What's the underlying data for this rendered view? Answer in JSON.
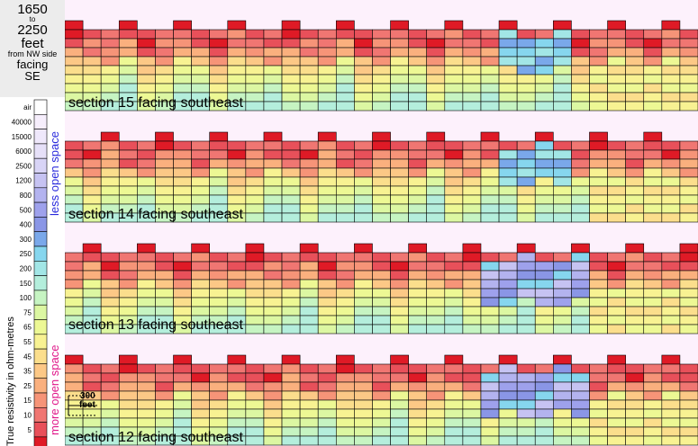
{
  "header": {
    "range_from": "1650",
    "range_to_word": "to",
    "range_to": "2250",
    "unit": "feet",
    "reference": "from NW side",
    "facing_word": "facing",
    "direction": "SE"
  },
  "legend": {
    "axis_title": "True resistivity in ohm-metres",
    "top_annotation": "less open space",
    "bottom_annotation": "more open space",
    "items": [
      {
        "label": "air",
        "color": "#ffffff"
      },
      {
        "label": "40000",
        "color": "#f6eefc"
      },
      {
        "label": "15000",
        "color": "#efe8fb"
      },
      {
        "label": "6000",
        "color": "#e6e0f8"
      },
      {
        "label": "2500",
        "color": "#d8d4f6"
      },
      {
        "label": "1200",
        "color": "#c6c3f2"
      },
      {
        "label": "800",
        "color": "#b3b3ef"
      },
      {
        "label": "500",
        "color": "#9ea1ec"
      },
      {
        "label": "400",
        "color": "#8a96e6"
      },
      {
        "label": "300",
        "color": "#7aa8ea"
      },
      {
        "label": "250",
        "color": "#86d6ee"
      },
      {
        "label": "200",
        "color": "#a2e6e6"
      },
      {
        "label": "150",
        "color": "#b4eedc"
      },
      {
        "label": "100",
        "color": "#c6f4c2"
      },
      {
        "label": "75",
        "color": "#dcf7a2"
      },
      {
        "label": "65",
        "color": "#edf894"
      },
      {
        "label": "55",
        "color": "#f8f292"
      },
      {
        "label": "45",
        "color": "#fbde8c"
      },
      {
        "label": "35",
        "color": "#fcc886"
      },
      {
        "label": "25",
        "color": "#fab07e"
      },
      {
        "label": "15",
        "color": "#f69478"
      },
      {
        "label": "10",
        "color": "#f07672"
      },
      {
        "label": "5",
        "color": "#e8505a"
      },
      {
        "label": "",
        "color": "#df1a26"
      }
    ]
  },
  "scale_bar": {
    "label_line1": "300",
    "label_line2": "feet"
  },
  "chart_data": {
    "type": "heatmap",
    "columns": 35,
    "rows_per_section": 9,
    "sections": [
      {
        "label": "section 15 facing southeast"
      },
      {
        "label": "section 14 facing southeast"
      },
      {
        "label": "section 13 facing southeast"
      },
      {
        "label": "section 12 facing southeast"
      }
    ]
  }
}
